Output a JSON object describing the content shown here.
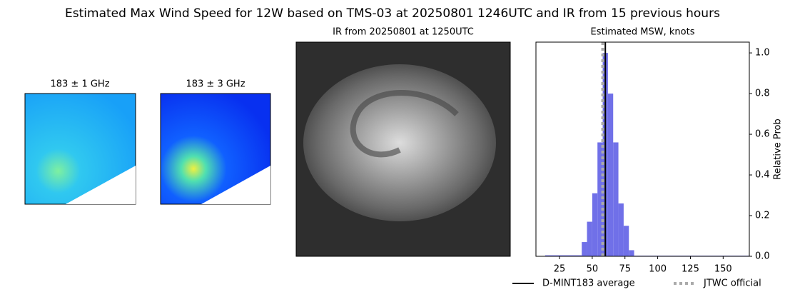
{
  "title": "Estimated Max Wind Speed for 12W based on TMS-03 at 20250801 1246UTC and IR from 15 previous hours",
  "panels": [
    {
      "title": "183 ± 1 GHz"
    },
    {
      "title": "183 ± 3 GHz"
    },
    {
      "title": "IR from 20250801 at 1250UTC"
    }
  ],
  "chart_data": {
    "type": "histogram",
    "title": "Estimated MSW, knots",
    "ylabel": "Relative Prob",
    "bins": [
      14,
      42,
      46,
      50,
      54,
      58,
      62,
      66,
      70,
      74,
      78,
      82,
      170
    ],
    "values": [
      0.005,
      0.07,
      0.17,
      0.31,
      0.56,
      1.0,
      0.8,
      0.56,
      0.26,
      0.15,
      0.03,
      0.003
    ],
    "color": "#7070e8",
    "xlim": [
      7,
      170
    ],
    "ylim": [
      0,
      1.053
    ],
    "xticks": [
      25,
      50,
      75,
      100,
      125,
      150
    ],
    "yticks": [
      {
        "value": 0,
        "label": "0.0"
      },
      0.2,
      0.4,
      0.6,
      0.8,
      {
        "value": 1,
        "label": "1.0"
      }
    ],
    "lines": [
      {
        "name": "D-MINT183 average",
        "value": 60,
        "color": "#000000",
        "style": "solid"
      },
      {
        "name": "JTWC official",
        "value": 58,
        "color": "#aaaaaa",
        "style": "dotted"
      }
    ]
  }
}
